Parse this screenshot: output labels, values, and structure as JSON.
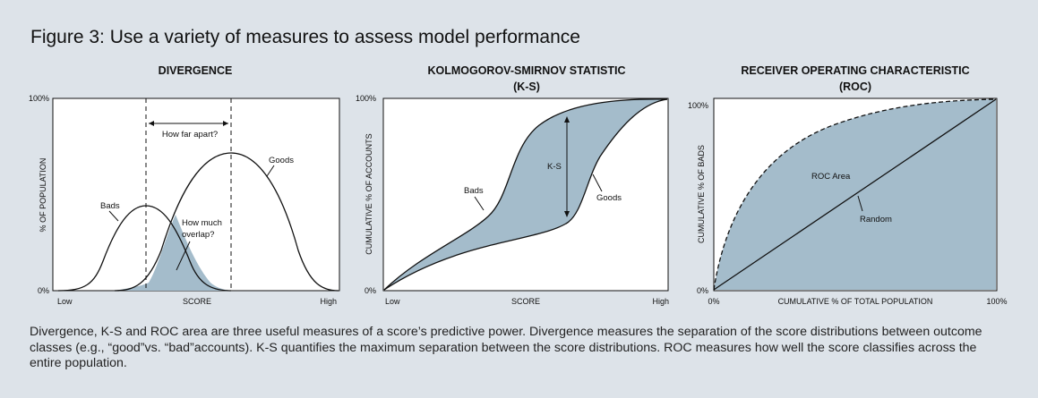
{
  "figure_title": "Figure 3: Use a variety of measures to assess model performance",
  "caption": "Divergence, K-S and ROC area are three useful measures of a score’s predictive power. Divergence measures the separation of the score distributions between outcome classes (e.g., “good”vs. “bad”accounts). K-S quantifies the maximum separation between the score distributions. ROC measures how well the score classifies across the entire population.",
  "colors": {
    "background": "#dde3e9",
    "panel": "#ffffff",
    "fill": "#a4bccb",
    "line": "#111111"
  },
  "divergence": {
    "title": "DIVERGENCE",
    "y_label": "% OF POPULATION",
    "y_max": "100%",
    "y_min": "0%",
    "x_low": "Low",
    "x_label": "SCORE",
    "x_high": "High",
    "label_bads": "Bads",
    "label_goods": "Goods",
    "label_apart": "How far apart?",
    "label_overlap_1": "How much",
    "label_overlap_2": "overlap?"
  },
  "ks": {
    "title_1": "KOLMOGOROV-SMIRNOV STATISTIC",
    "title_2": "(K-S)",
    "y_label": "CUMULATIVE % OF ACCOUNTS",
    "y_max": "100%",
    "y_min": "0%",
    "x_low": "Low",
    "x_label": "SCORE",
    "x_high": "High",
    "label_bads": "Bads",
    "label_goods": "Goods",
    "label_ks": "K-S"
  },
  "roc": {
    "title_1": "RECEIVER OPERATING CHARACTERISTIC",
    "title_2": "(ROC)",
    "y_label": "CUMULATIVE % OF BADS",
    "y_max": "100%",
    "y_min": "0%",
    "x_min": "0%",
    "x_label": "CUMULATIVE % OF TOTAL POPULATION",
    "x_max": "100%",
    "label_area": "ROC Area",
    "label_random": "Random"
  }
}
